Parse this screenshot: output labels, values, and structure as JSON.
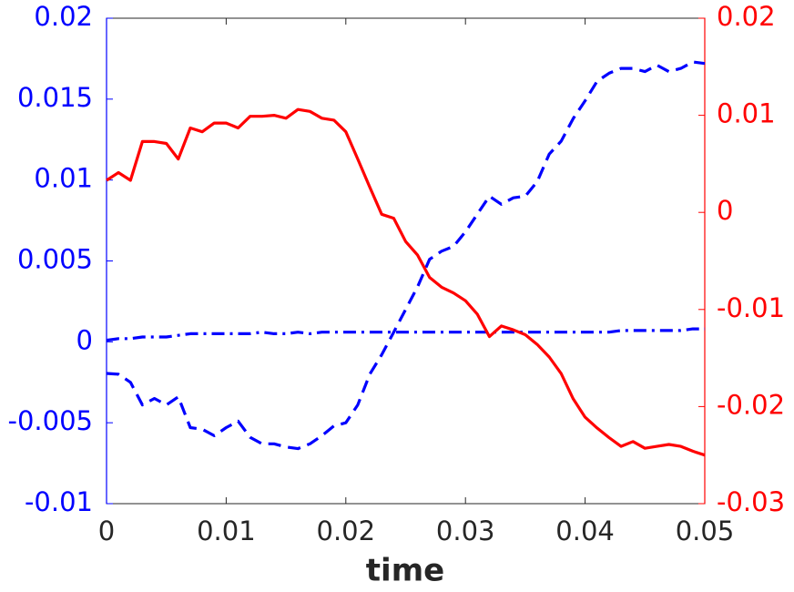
{
  "chart_data": {
    "type": "line",
    "xlabel": "time",
    "x": [
      0,
      0.001,
      0.002,
      0.003,
      0.004,
      0.005,
      0.006,
      0.007,
      0.008,
      0.009,
      0.01,
      0.011,
      0.012,
      0.013,
      0.014,
      0.015,
      0.016,
      0.017,
      0.018,
      0.019,
      0.02,
      0.021,
      0.022,
      0.023,
      0.024,
      0.025,
      0.026,
      0.027,
      0.028,
      0.029,
      0.03,
      0.031,
      0.032,
      0.033,
      0.034,
      0.035,
      0.036,
      0.037,
      0.038,
      0.039,
      0.04,
      0.041,
      0.042,
      0.043,
      0.044,
      0.045,
      0.046,
      0.047,
      0.048,
      0.049,
      0.05
    ],
    "xlim": [
      0,
      0.05
    ],
    "xticks": [
      0,
      0.01,
      0.02,
      0.03,
      0.04,
      0.05
    ],
    "ylim": [
      -0.01,
      0.02
    ],
    "yticks": [
      -0.01,
      -0.005,
      0,
      0.005,
      0.01,
      0.015,
      0.02
    ],
    "ycolor": "#0000ff",
    "y2lim": [
      -0.03,
      0.02
    ],
    "y2ticks": [
      -0.03,
      -0.02,
      -0.01,
      0,
      0.01,
      0.02
    ],
    "y2color": "#ff0000",
    "series": [
      {
        "color": "#0000ff",
        "line_style": "dashed",
        "axis": "y",
        "values": [
          -0.00195,
          -0.002,
          -0.0025,
          -0.0039,
          -0.0035,
          -0.0039,
          -0.0034,
          -0.0053,
          -0.0054,
          -0.0058,
          -0.0053,
          -0.0049,
          -0.0059,
          -0.0063,
          -0.0063,
          -0.0065,
          -0.0066,
          -0.0063,
          -0.0058,
          -0.0052,
          -0.005,
          -0.0039,
          -0.002,
          -0.0008,
          0.0006,
          0.002,
          0.0034,
          0.0051,
          0.0056,
          0.0059,
          0.0068,
          0.0079,
          0.009,
          0.0085,
          0.0089,
          0.009,
          0.0099,
          0.0116,
          0.0124,
          0.0138,
          0.0149,
          0.0161,
          0.0166,
          0.0169,
          0.0169,
          0.0167,
          0.0171,
          0.0167,
          0.0169,
          0.0173,
          0.0172
        ]
      },
      {
        "color": "#0000ff",
        "line_style": "dashdot",
        "axis": "y",
        "values": [
          0.0001,
          0.0002,
          0.0002,
          0.0003,
          0.0003,
          0.0003,
          0.0004,
          0.0005,
          0.0005,
          0.0005,
          0.0005,
          0.0005,
          0.0005,
          0.0006,
          0.0005,
          0.0005,
          0.0006,
          0.0005,
          0.0006,
          0.0006,
          0.0006,
          0.0006,
          0.0006,
          0.0006,
          0.0006,
          0.0006,
          0.0006,
          0.0006,
          0.0006,
          0.0006,
          0.0006,
          0.0006,
          0.0006,
          0.0006,
          0.0006,
          0.0006,
          0.0006,
          0.0006,
          0.0006,
          0.0006,
          0.0006,
          0.0006,
          0.0006,
          0.0007,
          0.0007,
          0.0007,
          0.0007,
          0.0007,
          0.0007,
          0.0008,
          0.0008
        ]
      },
      {
        "color": "#ff0000",
        "line_style": "solid",
        "axis": "y2",
        "values": [
          0.0033,
          0.0041,
          0.0033,
          0.0073,
          0.0073,
          0.0071,
          0.0055,
          0.0087,
          0.0083,
          0.0092,
          0.0092,
          0.0087,
          0.0099,
          0.0099,
          0.01,
          0.0097,
          0.0106,
          0.0104,
          0.0097,
          0.0095,
          0.0083,
          0.0055,
          0.0026,
          -0.0002,
          -0.0006,
          -0.003,
          -0.0044,
          -0.0067,
          -0.0077,
          -0.0083,
          -0.0091,
          -0.0105,
          -0.0128,
          -0.0117,
          -0.0121,
          -0.0126,
          -0.0136,
          -0.0149,
          -0.0166,
          -0.0192,
          -0.0211,
          -0.0222,
          -0.0232,
          -0.0241,
          -0.0236,
          -0.0243,
          -0.0241,
          -0.0239,
          -0.0241,
          -0.0246,
          -0.025
        ]
      }
    ]
  }
}
